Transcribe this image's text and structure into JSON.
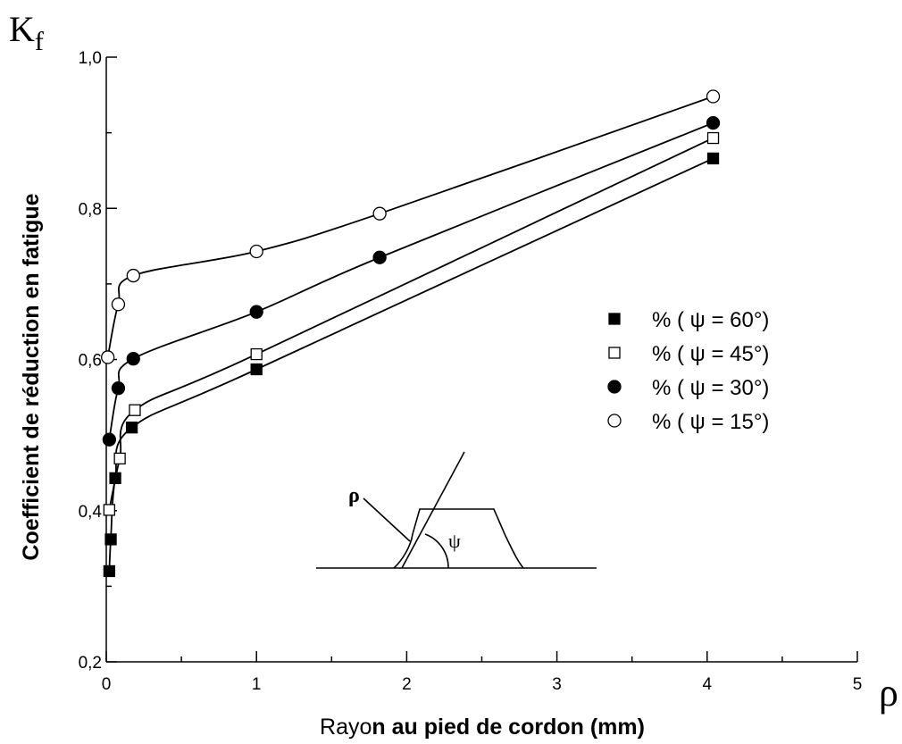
{
  "chart_data": {
    "type": "scatter",
    "xlabel_prefix": "Rayo",
    "xlabel_main": "n au pied de cordon (mm)",
    "ylabel": "Coefficient de réduction en fatigue",
    "y_axis_symbol": "K",
    "y_axis_symbol_sub": "f",
    "x_axis_symbol": "ρ",
    "xlim": [
      0,
      5
    ],
    "ylim": [
      0.2,
      1.0
    ],
    "x_ticks": [
      0,
      1,
      2,
      3,
      4,
      5
    ],
    "x_tick_labels": [
      "0",
      "1",
      "2",
      "3",
      "4",
      "5"
    ],
    "y_ticks": [
      0.2,
      0.4,
      0.6,
      0.8,
      1.0
    ],
    "y_tick_labels": [
      "0,2",
      "0,4",
      "0,6",
      "0,8",
      "1,0"
    ],
    "grid": false,
    "legend_position": "right",
    "series": [
      {
        "name": "% ( ψ = 60°)",
        "marker": "filled-square",
        "x": [
          0.02,
          0.03,
          0.06,
          0.17,
          1.0,
          4.04
        ],
        "y": [
          0.32,
          0.362,
          0.443,
          0.51,
          0.587,
          0.866
        ]
      },
      {
        "name": "% ( ψ = 45°)",
        "marker": "open-square",
        "x": [
          0.02,
          0.09,
          0.19,
          1.0,
          4.04
        ],
        "y": [
          0.401,
          0.469,
          0.533,
          0.607,
          0.893
        ]
      },
      {
        "name": "% ( ψ = 30°)",
        "marker": "filled-circle",
        "x": [
          0.02,
          0.08,
          0.18,
          1.0,
          1.82,
          4.04
        ],
        "y": [
          0.494,
          0.562,
          0.601,
          0.663,
          0.735,
          0.913
        ]
      },
      {
        "name": "% ( ψ = 15°)",
        "marker": "open-circle",
        "x": [
          0.01,
          0.08,
          0.18,
          1.0,
          1.82,
          4.04
        ],
        "y": [
          0.603,
          0.673,
          0.711,
          0.743,
          0.793,
          0.948
        ]
      }
    ],
    "inset": {
      "radius_label": "ρ",
      "angle_label": "ψ"
    }
  }
}
